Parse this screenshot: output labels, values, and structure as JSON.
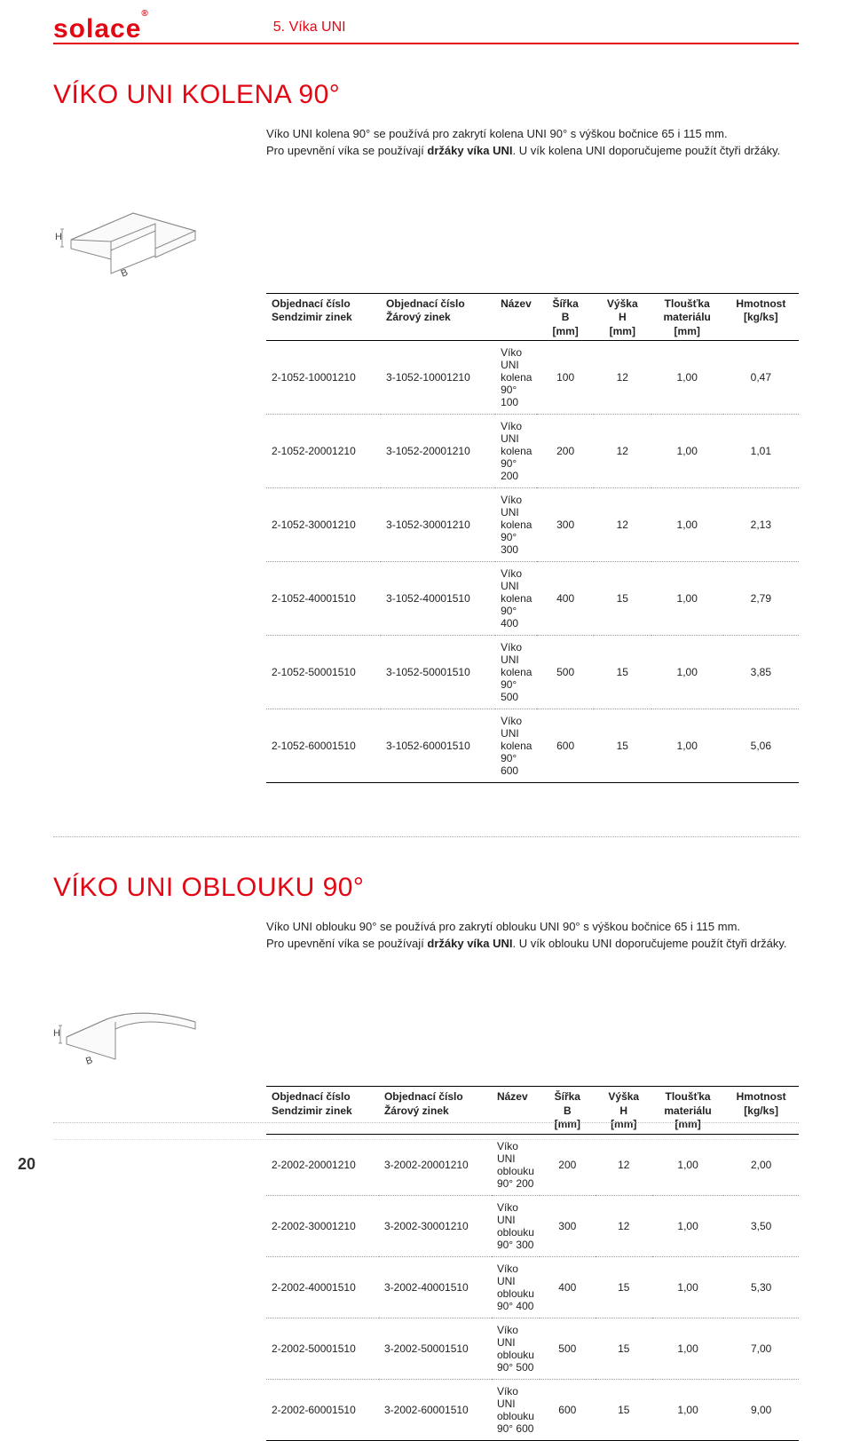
{
  "header": {
    "brand": "solace",
    "tab": "5. Víka UNI"
  },
  "section1": {
    "title": "VÍKO UNI KOLENA 90°",
    "desc_line1_a": "Víko UNI kolena 90° se používá pro zakrytí kolena UNI 90° s výškou bočnice 65 i 115 mm.",
    "desc_line2_a": "Pro upevnění víka se používají ",
    "desc_line2_b": "držáky víka UNI",
    "desc_line2_c": ". U vík kolena UNI doporučujeme použít čtyři držáky.",
    "diagram": {
      "label_H": "H",
      "label_B": "B"
    },
    "table": {
      "columns": [
        "Objednací číslo\nSendzimir zinek",
        "Objednací číslo\nŽárový zinek",
        "Název",
        "Šířka\nB\n[mm]",
        "Výška\nH\n[mm]",
        "Tloušťka\nmateriálu\n[mm]",
        "Hmotnost\n[kg/ks]"
      ],
      "rows": [
        [
          "2-1052-10001210",
          "3-1052-10001210",
          "Víko UNI kolena 90° 100",
          "100",
          "12",
          "1,00",
          "0,47"
        ],
        [
          "2-1052-20001210",
          "3-1052-20001210",
          "Víko UNI kolena 90° 200",
          "200",
          "12",
          "1,00",
          "1,01"
        ],
        [
          "2-1052-30001210",
          "3-1052-30001210",
          "Víko UNI kolena 90° 300",
          "300",
          "12",
          "1,00",
          "2,13"
        ],
        [
          "2-1052-40001510",
          "3-1052-40001510",
          "Víko UNI kolena 90° 400",
          "400",
          "15",
          "1,00",
          "2,79"
        ],
        [
          "2-1052-50001510",
          "3-1052-50001510",
          "Víko UNI kolena 90° 500",
          "500",
          "15",
          "1,00",
          "3,85"
        ],
        [
          "2-1052-60001510",
          "3-1052-60001510",
          "Víko UNI kolena 90° 600",
          "600",
          "15",
          "1,00",
          "5,06"
        ]
      ]
    }
  },
  "section2": {
    "title": "VÍKO UNI OBLOUKU 90°",
    "desc_line1": "Víko UNI oblouku 90° se používá pro zakrytí oblouku UNI 90° s výškou bočnice 65 i 115 mm.",
    "desc_line2_a": "Pro upevnění víka se používají ",
    "desc_line2_b": "držáky víka UNI",
    "desc_line2_c": ". U vík oblouku UNI doporučujeme použít čtyři držáky.",
    "diagram": {
      "label_H": "H",
      "label_B": "B"
    },
    "table": {
      "columns": [
        "Objednací číslo\nSendzimir zinek",
        "Objednací číslo\nŽárový zinek",
        "Název",
        "Šířka\nB\n[mm]",
        "Výška\nH\n[mm]",
        "Tloušťka\nmateriálu\n[mm]",
        "Hmotnost\n[kg/ks]"
      ],
      "rows": [
        [
          "2-2002-20001210",
          "3-2002-20001210",
          "Víko UNI oblouku 90° 200",
          "200",
          "12",
          "1,00",
          "2,00"
        ],
        [
          "2-2002-30001210",
          "3-2002-30001210",
          "Víko UNI oblouku 90° 300",
          "300",
          "12",
          "1,00",
          "3,50"
        ],
        [
          "2-2002-40001510",
          "3-2002-40001510",
          "Víko UNI oblouku 90° 400",
          "400",
          "15",
          "1,00",
          "5,30"
        ],
        [
          "2-2002-50001510",
          "3-2002-50001510",
          "Víko UNI oblouku 90° 500",
          "500",
          "15",
          "1,00",
          "7,00"
        ],
        [
          "2-2002-60001510",
          "3-2002-60001510",
          "Víko UNI oblouku 90° 600",
          "600",
          "15",
          "1,00",
          "9,00"
        ]
      ]
    }
  },
  "page_number": "20",
  "style": {
    "accent": "#e30613",
    "text": "#222222",
    "border": "#000000",
    "dotted": "#999999",
    "title_fontsize": 30,
    "body_fontsize": 13,
    "table_fontsize": 12
  }
}
